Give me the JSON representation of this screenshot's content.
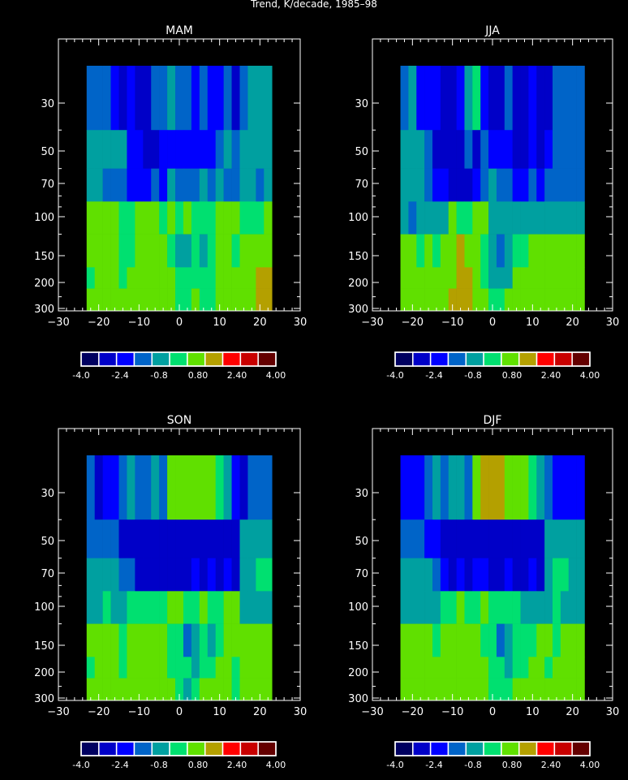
{
  "title": "Trend, K/decade, 1985–98",
  "chart_data": {
    "type": "heatmap",
    "title": "Trend, K/decade, 1985–98",
    "xlim": [
      -30,
      30
    ],
    "x_ticks": [
      -30,
      -20,
      -10,
      0,
      10,
      20,
      30
    ],
    "y_scale": "log-pressure",
    "y_ticks": [
      30,
      50,
      70,
      100,
      150,
      200,
      300
    ],
    "grid": false,
    "colorbar": {
      "levels": [
        -4.0,
        -3.2,
        -2.4,
        -1.6,
        -0.8,
        0.0,
        0.8,
        1.6,
        2.4,
        3.2,
        4.0
      ],
      "tick_labels": [
        "-4.0",
        "-2.4",
        "-0.8",
        "0.80",
        "2.40",
        "4.00"
      ],
      "colors": [
        "#000060",
        "#0000c8",
        "#0000ff",
        "#0064c8",
        "#00a0a0",
        "#00e070",
        "#60e000",
        "#b4a000",
        "#ff0000",
        "#c80000",
        "#640000"
      ]
    },
    "panels": [
      {
        "title": "MAM",
        "lat_edges": [
          -23,
          -21,
          -19,
          -17,
          -15,
          -13,
          -11,
          -9,
          -7,
          -5,
          -3,
          -1,
          1,
          3,
          5,
          7,
          9,
          11,
          13,
          15,
          17,
          19,
          21,
          23
        ],
        "levels": [
          {
            "top": 20,
            "bottom": 40,
            "values": [
              -1.8,
              -1.8,
              -1.8,
              -2.4,
              -2.6,
              -2.4,
              -2.8,
              -2.8,
              -1.8,
              -1.2,
              -0.8,
              -1.4,
              -1.6,
              -2.0,
              -1.6,
              -2.2,
              -2.2,
              -1.8,
              -2.6,
              -1.6,
              -1.0,
              -1.0,
              -1.0
            ]
          },
          {
            "top": 40,
            "bottom": 60,
            "values": [
              -1.0,
              -1.0,
              -1.0,
              -1.0,
              -1.0,
              -2.4,
              -2.4,
              -2.6,
              -2.6,
              -2.4,
              -2.0,
              -2.2,
              -2.0,
              -2.4,
              -2.4,
              -2.4,
              -1.6,
              -1.0,
              -1.2,
              -0.8,
              -1.0,
              -1.0,
              -1.0
            ]
          },
          {
            "top": 60,
            "bottom": 85,
            "values": [
              -0.6,
              -0.6,
              -1.2,
              -1.2,
              -1.6,
              -2.0,
              -2.2,
              -2.0,
              -1.6,
              -2.0,
              -1.0,
              -1.8,
              -1.6,
              -1.2,
              -1.0,
              -1.2,
              -1.0,
              -1.6,
              -1.2,
              -0.8,
              -0.6,
              -1.2,
              -0.6
            ]
          },
          {
            "top": 85,
            "bottom": 120,
            "values": [
              0.4,
              0.4,
              0.6,
              0.6,
              0.2,
              -0.2,
              0.4,
              1.0,
              0.8,
              0.2,
              0.4,
              0.2,
              0.4,
              0.0,
              0.2,
              0.2,
              0.6,
              0.6,
              0.4,
              0.2,
              0.2,
              0.2,
              0.4
            ]
          },
          {
            "top": 120,
            "bottom": 170,
            "values": [
              0.4,
              0.8,
              0.6,
              0.4,
              0.2,
              0.2,
              0.6,
              0.8,
              0.8,
              0.4,
              0.2,
              -0.6,
              -1.0,
              -0.2,
              -0.6,
              0.2,
              0.4,
              0.4,
              0.2,
              0.6,
              0.6,
              0.6,
              0.6
            ]
          },
          {
            "top": 170,
            "bottom": 220,
            "values": [
              0.2,
              0.6,
              0.4,
              0.4,
              0.2,
              0.4,
              0.6,
              1.0,
              1.0,
              0.6,
              0.6,
              -0.2,
              -0.2,
              0.2,
              0.0,
              0.2,
              0.4,
              0.4,
              0.4,
              0.4,
              1.0,
              1.2,
              1.2
            ]
          },
          {
            "top": 220,
            "bottom": 310,
            "values": [
              0.4,
              0.6,
              0.4,
              0.4,
              0.6,
              0.6,
              0.8,
              0.8,
              0.8,
              0.6,
              0.4,
              0.0,
              0.2,
              0.4,
              0.2,
              0.2,
              0.6,
              0.6,
              0.4,
              0.6,
              1.0,
              1.2,
              1.2
            ]
          }
        ]
      },
      {
        "title": "JJA",
        "lat_edges": [
          -23,
          -21,
          -19,
          -17,
          -15,
          -13,
          -11,
          -9,
          -7,
          -5,
          -3,
          -1,
          1,
          3,
          5,
          7,
          9,
          11,
          13,
          15,
          17,
          19,
          21,
          23
        ],
        "levels": [
          {
            "top": 20,
            "bottom": 40,
            "values": [
              -1.6,
              -1.0,
              -2.0,
              -2.2,
              -2.4,
              -2.8,
              -2.6,
              -2.0,
              -0.6,
              0.2,
              -2.2,
              -2.8,
              -2.6,
              -1.8,
              -2.6,
              -2.8,
              -2.0,
              -2.6,
              -3.0,
              -1.8,
              -1.2,
              -1.2,
              -1.2
            ]
          },
          {
            "top": 40,
            "bottom": 60,
            "values": [
              -1.0,
              -1.0,
              -1.0,
              -1.2,
              -3.0,
              -3.0,
              -2.8,
              -2.6,
              -1.8,
              -2.6,
              -1.8,
              -2.2,
              -2.2,
              -2.4,
              -3.0,
              -3.0,
              -2.4,
              -2.6,
              -2.0,
              -1.4,
              -1.2,
              -1.2,
              -1.2
            ]
          },
          {
            "top": 60,
            "bottom": 85,
            "values": [
              -0.8,
              -0.8,
              -1.0,
              -1.6,
              -2.0,
              -2.2,
              -3.0,
              -3.0,
              -3.2,
              -2.4,
              -1.6,
              -1.0,
              -1.6,
              -1.4,
              -2.4,
              -2.4,
              -1.6,
              -2.0,
              -1.6,
              -1.2,
              -1.2,
              -1.2,
              -1.2
            ]
          },
          {
            "top": 85,
            "bottom": 120,
            "values": [
              -1.0,
              -1.4,
              -0.6,
              -0.6,
              -0.4,
              -0.4,
              0.4,
              -0.2,
              -0.2,
              1.0,
              1.0,
              -0.6,
              -1.0,
              -1.0,
              -0.6,
              -0.8,
              -0.6,
              -0.8,
              -0.4,
              -0.6,
              -0.8,
              -1.0,
              -1.0
            ]
          },
          {
            "top": 120,
            "bottom": 170,
            "values": [
              0.4,
              0.6,
              0.2,
              0.4,
              0.2,
              0.4,
              0.6,
              1.2,
              0.8,
              0.4,
              0.2,
              -0.6,
              -1.6,
              -0.6,
              -0.2,
              0.2,
              0.4,
              0.4,
              0.6,
              0.4,
              0.4,
              0.4,
              0.4
            ]
          },
          {
            "top": 170,
            "bottom": 220,
            "values": [
              0.4,
              1.0,
              0.4,
              0.6,
              0.4,
              0.4,
              1.0,
              1.4,
              1.2,
              0.6,
              0.2,
              -0.6,
              -0.8,
              -0.4,
              0.4,
              0.4,
              0.6,
              0.6,
              0.4,
              0.6,
              1.0,
              1.0,
              1.0
            ]
          },
          {
            "top": 220,
            "bottom": 310,
            "values": [
              0.4,
              1.0,
              0.8,
              0.8,
              0.8,
              0.8,
              1.2,
              1.4,
              1.2,
              0.6,
              0.4,
              0.0,
              -0.2,
              0.4,
              0.4,
              0.4,
              0.8,
              0.6,
              0.6,
              0.6,
              0.8,
              0.8,
              0.8
            ]
          }
        ]
      },
      {
        "title": "SON",
        "lat_edges": [
          -23,
          -21,
          -19,
          -17,
          -15,
          -13,
          -11,
          -9,
          -7,
          -5,
          -3,
          -1,
          1,
          3,
          5,
          7,
          9,
          11,
          13,
          15,
          17,
          19,
          21,
          23
        ],
        "levels": [
          {
            "top": 20,
            "bottom": 40,
            "values": [
              -1.8,
              -2.6,
              -2.4,
              -2.0,
              -1.6,
              -1.0,
              -1.6,
              -1.2,
              -0.8,
              -1.2,
              0.8,
              1.0,
              0.8,
              0.6,
              0.6,
              0.6,
              0.2,
              -0.4,
              -2.4,
              -2.6,
              -1.6,
              -1.6,
              -1.6
            ]
          },
          {
            "top": 40,
            "bottom": 60,
            "values": [
              -1.2,
              -1.2,
              -1.2,
              -1.2,
              -2.8,
              -2.8,
              -2.8,
              -3.0,
              -3.0,
              -3.2,
              -3.2,
              -3.0,
              -3.0,
              -2.8,
              -2.8,
              -3.2,
              -2.8,
              -2.8,
              -2.8,
              -0.6,
              -0.6,
              -0.6,
              -0.6
            ]
          },
          {
            "top": 60,
            "bottom": 85,
            "values": [
              -0.8,
              -0.8,
              -0.8,
              -0.8,
              -1.2,
              -1.6,
              -2.6,
              -2.8,
              -2.8,
              -2.6,
              -2.6,
              -2.6,
              -2.6,
              -2.2,
              -2.8,
              -2.2,
              -2.6,
              -2.4,
              -3.0,
              -0.6,
              -0.6,
              0.0,
              0.0
            ]
          },
          {
            "top": 85,
            "bottom": 120,
            "values": [
              -0.6,
              -0.8,
              -0.2,
              -0.4,
              -0.6,
              0.2,
              0.0,
              0.0,
              0.2,
              0.0,
              0.4,
              0.6,
              0.0,
              0.2,
              0.4,
              0.0,
              0.2,
              0.4,
              0.4,
              -0.6,
              -0.6,
              -0.8,
              -0.8
            ]
          },
          {
            "top": 120,
            "bottom": 170,
            "values": [
              0.4,
              0.4,
              0.6,
              0.4,
              0.0,
              0.4,
              0.4,
              1.0,
              0.6,
              0.4,
              0.0,
              -0.2,
              -1.6,
              -1.0,
              0.0,
              -0.4,
              0.0,
              0.4,
              0.4,
              0.6,
              0.6,
              0.6,
              0.6
            ]
          },
          {
            "top": 170,
            "bottom": 220,
            "values": [
              0.2,
              0.4,
              0.4,
              0.4,
              0.2,
              0.6,
              0.6,
              0.6,
              0.4,
              0.4,
              0.2,
              0.0,
              0.2,
              -0.8,
              0.2,
              0.2,
              0.4,
              0.4,
              0.2,
              0.6,
              0.8,
              0.8,
              0.8
            ]
          },
          {
            "top": 220,
            "bottom": 310,
            "values": [
              0.4,
              0.6,
              0.4,
              0.4,
              0.4,
              0.6,
              0.8,
              0.6,
              0.6,
              0.6,
              0.4,
              0.0,
              -0.8,
              0.2,
              0.4,
              0.4,
              0.4,
              0.4,
              0.2,
              0.6,
              0.6,
              0.6,
              0.6
            ]
          }
        ]
      },
      {
        "title": "DJF",
        "lat_edges": [
          -23,
          -21,
          -19,
          -17,
          -15,
          -13,
          -11,
          -9,
          -7,
          -5,
          -3,
          -1,
          1,
          3,
          5,
          7,
          9,
          11,
          13,
          15,
          17,
          19,
          21,
          23
        ],
        "levels": [
          {
            "top": 20,
            "bottom": 40,
            "values": [
              -2.0,
              -2.4,
              -2.2,
              -1.6,
              -1.0,
              -1.2,
              -0.6,
              -0.8,
              -1.2,
              0.6,
              1.2,
              1.2,
              1.2,
              1.0,
              0.6,
              0.6,
              -0.2,
              -1.0,
              -1.8,
              -2.0,
              -2.0,
              -2.4,
              -2.4
            ]
          },
          {
            "top": 40,
            "bottom": 60,
            "values": [
              -1.2,
              -1.2,
              -1.2,
              -2.4,
              -2.4,
              -2.6,
              -2.8,
              -2.8,
              -3.0,
              -2.6,
              -2.6,
              -2.6,
              -3.0,
              -2.6,
              -2.8,
              -2.6,
              -3.2,
              -2.8,
              -1.0,
              -1.0,
              -1.0,
              -1.0,
              -1.0
            ]
          },
          {
            "top": 60,
            "bottom": 85,
            "values": [
              -1.0,
              -1.0,
              -0.8,
              -1.0,
              -1.8,
              -2.2,
              -2.6,
              -2.4,
              -2.8,
              -2.4,
              -2.4,
              -2.6,
              -2.6,
              -2.4,
              -2.6,
              -2.8,
              -2.4,
              -2.8,
              -0.6,
              -0.2,
              -0.2,
              -0.6,
              -0.6
            ]
          },
          {
            "top": 85,
            "bottom": 120,
            "values": [
              -0.6,
              -0.6,
              -0.6,
              -0.6,
              -0.6,
              0.0,
              0.2,
              0.4,
              0.0,
              0.0,
              0.4,
              -0.2,
              0.0,
              -0.2,
              -0.2,
              -0.4,
              -0.6,
              -0.6,
              -0.6,
              -0.2,
              -0.8,
              -0.8,
              -0.8
            ]
          },
          {
            "top": 120,
            "bottom": 170,
            "values": [
              0.6,
              0.8,
              0.4,
              0.4,
              0.0,
              0.4,
              0.4,
              0.6,
              0.4,
              0.4,
              -0.2,
              0.0,
              -1.8,
              -0.4,
              0.0,
              0.2,
              0.2,
              0.4,
              0.4,
              0.2,
              0.4,
              0.4,
              0.4
            ]
          },
          {
            "top": 170,
            "bottom": 220,
            "values": [
              0.6,
              0.8,
              0.4,
              0.6,
              0.4,
              0.4,
              0.6,
              0.6,
              0.4,
              0.4,
              0.4,
              0.2,
              -0.2,
              -0.6,
              0.2,
              0.2,
              0.4,
              0.4,
              0.2,
              0.6,
              0.6,
              0.6,
              0.6
            ]
          },
          {
            "top": 220,
            "bottom": 310,
            "values": [
              0.6,
              0.8,
              0.6,
              0.6,
              0.6,
              0.6,
              0.6,
              0.4,
              0.4,
              0.4,
              0.4,
              0.2,
              0.0,
              0.2,
              0.4,
              0.4,
              0.4,
              0.4,
              0.4,
              0.6,
              0.6,
              0.6,
              0.6
            ]
          }
        ]
      }
    ]
  }
}
